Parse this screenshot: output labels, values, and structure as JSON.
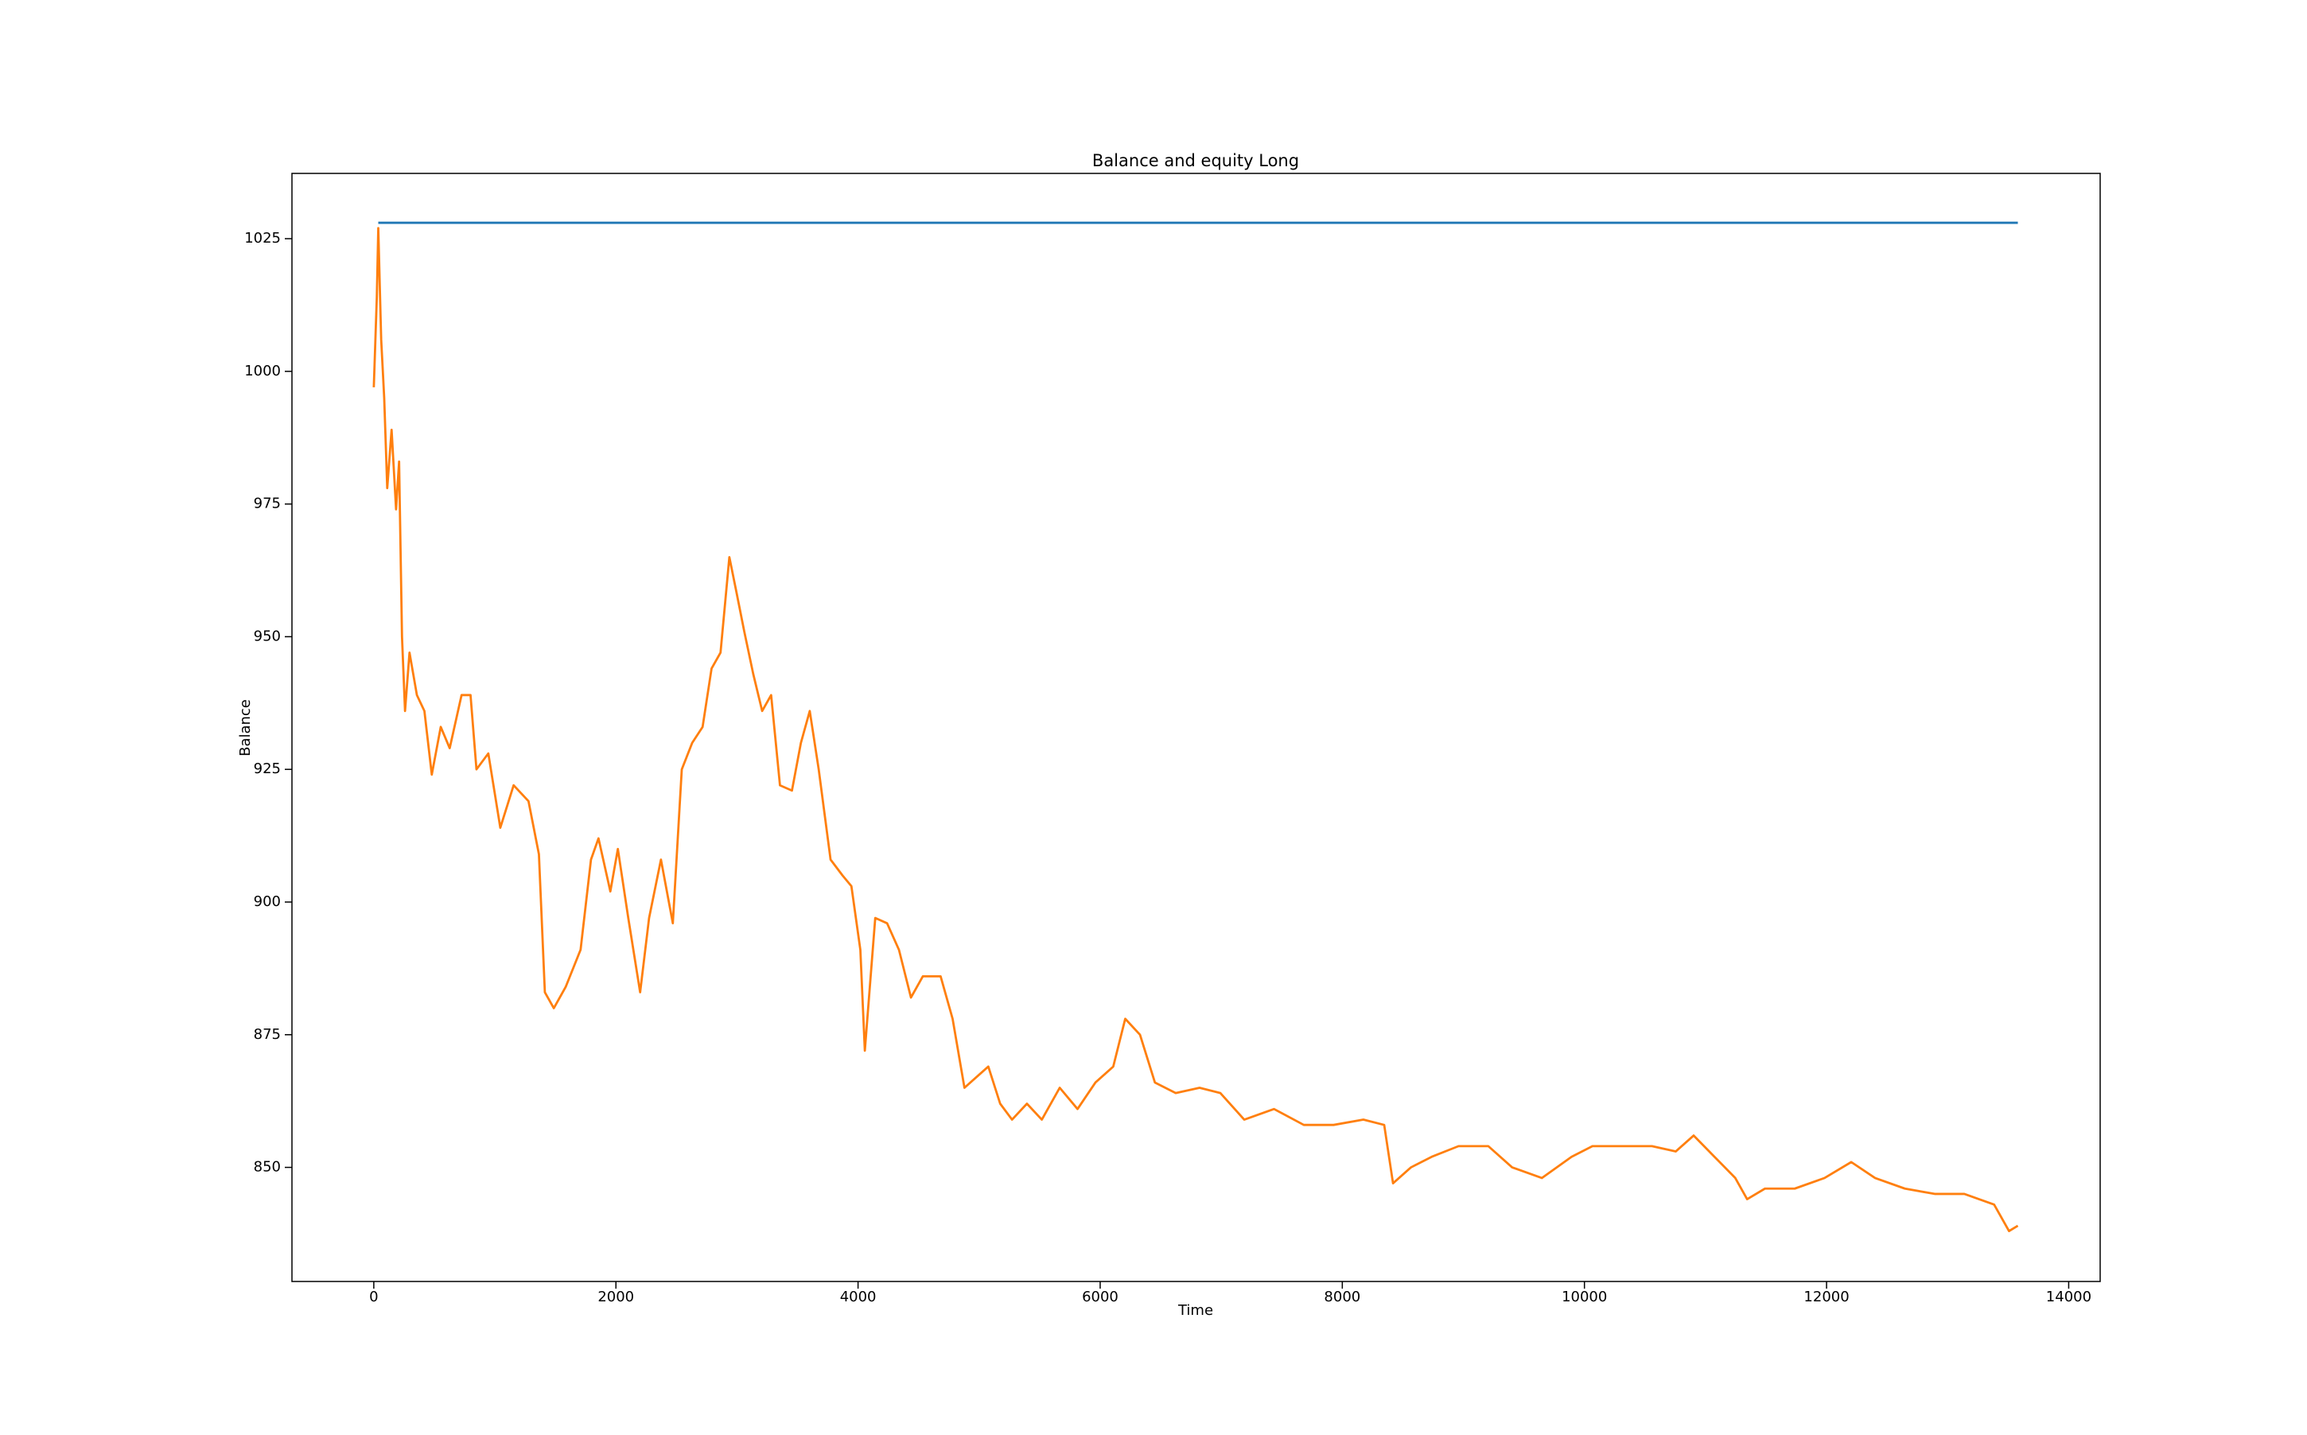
{
  "chart_data": {
    "type": "line",
    "title": "Balance and equity Long",
    "x_label": "Time",
    "y_label": "Balance",
    "xlim": [
      -676,
      14260
    ],
    "ylim": [
      828.5,
      1037.3
    ],
    "xticks": [
      0,
      2000,
      4000,
      6000,
      8000,
      10000,
      12000,
      14000
    ],
    "yticks": [
      850,
      875,
      900,
      925,
      950,
      975,
      1000,
      1025
    ],
    "grid": false,
    "series": [
      {
        "color": "#1f77b4",
        "x": [
          37,
          13580
        ],
        "values": [
          1028,
          1028
        ]
      },
      {
        "color": "#ff7f0e",
        "x": [
          0,
          25,
          37,
          61,
          86,
          111,
          147,
          184,
          209,
          233,
          258,
          295,
          356,
          418,
          479,
          553,
          627,
          725,
          799,
          848,
          946,
          1045,
          1155,
          1278,
          1364,
          1413,
          1487,
          1585,
          1708,
          1794,
          1856,
          1954,
          2016,
          2102,
          2200,
          2274,
          2372,
          2470,
          2544,
          2630,
          2716,
          2790,
          2864,
          2937,
          2999,
          3060,
          3134,
          3208,
          3282,
          3355,
          3454,
          3528,
          3601,
          3675,
          3773,
          3872,
          3945,
          4019,
          4056,
          4142,
          4240,
          4338,
          4437,
          4535,
          4682,
          4781,
          4879,
          4977,
          5076,
          5174,
          5272,
          5395,
          5518,
          5666,
          5813,
          5961,
          6108,
          6207,
          6329,
          6452,
          6624,
          6821,
          6993,
          7190,
          7436,
          7682,
          7928,
          8174,
          8346,
          8419,
          8567,
          8739,
          8960,
          9206,
          9403,
          9649,
          9894,
          10066,
          10312,
          10558,
          10754,
          10902,
          11074,
          11246,
          11344,
          11491,
          11737,
          11983,
          12204,
          12401,
          12647,
          12893,
          13138,
          13384,
          13507,
          13580
        ],
        "values": [
          997,
          1014,
          1027,
          1006,
          995,
          978,
          989,
          974,
          983,
          950,
          936,
          947,
          939,
          936,
          924,
          933,
          929,
          939,
          939,
          925,
          928,
          914,
          922,
          919,
          909,
          883,
          880,
          884,
          891,
          908,
          912,
          902,
          910,
          897,
          883,
          897,
          908,
          896,
          925,
          930,
          933,
          944,
          947,
          965,
          958,
          951,
          943,
          936,
          939,
          922,
          921,
          930,
          936,
          925,
          908,
          905,
          903,
          891,
          872,
          897,
          896,
          891,
          882,
          886,
          886,
          878,
          865,
          867,
          869,
          862,
          859,
          862,
          859,
          865,
          861,
          866,
          869,
          878,
          875,
          866,
          864,
          865,
          864,
          859,
          861,
          858,
          858,
          859,
          858,
          847,
          850,
          852,
          854,
          854,
          850,
          848,
          852,
          854,
          854,
          854,
          853,
          856,
          852,
          848,
          844,
          846,
          846,
          848,
          851,
          848,
          846,
          845,
          845,
          843,
          838,
          839
        ]
      }
    ]
  }
}
